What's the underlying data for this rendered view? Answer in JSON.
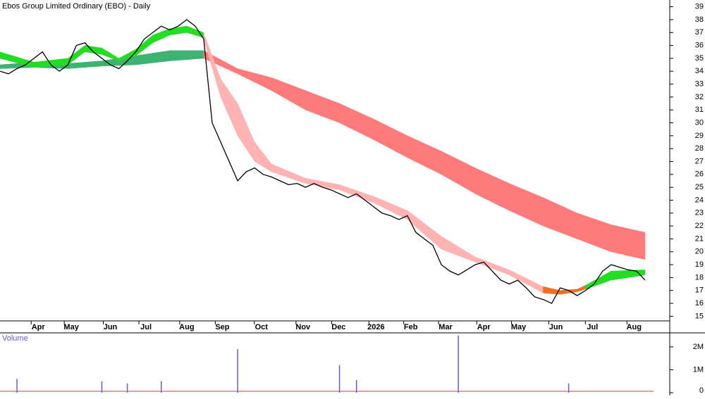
{
  "chart_data": {
    "type": "line",
    "title": "Ebos Group Limited Ordinary (EBO) - Daily",
    "xlim": [
      0,
      77
    ],
    "xticks": [
      {
        "value": 4.5,
        "label": "Apr"
      },
      {
        "value": 8.4,
        "label": "May"
      },
      {
        "value": 13,
        "label": "Jun"
      },
      {
        "value": 17.2,
        "label": "Jul"
      },
      {
        "value": 22,
        "label": "Aug"
      },
      {
        "value": 26.2,
        "label": "Sep"
      },
      {
        "value": 30.8,
        "label": "Oct"
      },
      {
        "value": 35.7,
        "label": "Nov"
      },
      {
        "value": 39.9,
        "label": "Dec"
      },
      {
        "value": 44.3,
        "label": "2026"
      },
      {
        "value": 48.4,
        "label": "Feb"
      },
      {
        "value": 52.5,
        "label": "Mar"
      },
      {
        "value": 57,
        "label": "Apr"
      },
      {
        "value": 61.1,
        "label": "May"
      },
      {
        "value": 65.5,
        "label": "Jun"
      },
      {
        "value": 69.8,
        "label": "Jul"
      },
      {
        "value": 74.7,
        "label": "Aug"
      }
    ],
    "ylim": [
      14.75,
      39.25
    ],
    "yticks": [
      15,
      16,
      17,
      18,
      19,
      20,
      21,
      22,
      23,
      24,
      25,
      26,
      27,
      28,
      29,
      30,
      31,
      32,
      33,
      34,
      35,
      36,
      37,
      38,
      39
    ],
    "price": {
      "color": "#000000",
      "x": [
        0,
        1,
        2,
        3,
        4,
        5,
        6,
        7,
        8,
        9,
        10,
        11,
        12,
        13,
        14,
        15,
        16,
        17,
        18,
        19,
        20,
        21,
        22,
        23,
        24,
        25,
        26,
        27,
        28,
        29,
        30,
        31,
        32,
        33,
        34,
        35,
        36,
        37,
        38,
        39,
        40,
        41,
        42,
        43,
        44,
        45,
        46,
        47,
        48,
        49,
        50,
        51,
        52,
        53,
        54,
        55,
        56,
        57,
        58,
        59,
        60,
        61,
        62,
        63,
        64,
        65,
        66,
        67,
        68,
        69,
        70,
        71,
        72,
        73,
        74,
        75,
        76
      ],
      "values": [
        34,
        33.8,
        34.2,
        34.5,
        35,
        35.5,
        34.5,
        34,
        34.5,
        36,
        36.2,
        35.5,
        35,
        34.5,
        34.2,
        34.8,
        35.5,
        36.5,
        37,
        37.5,
        37.2,
        37.5,
        38,
        37.5,
        36.5,
        30,
        28.5,
        27,
        25.5,
        26.2,
        26.5,
        26,
        25.8,
        25.5,
        25.2,
        25.3,
        25,
        25.3,
        25,
        24.8,
        24.5,
        24.2,
        24.5,
        24,
        23.5,
        23,
        22.8,
        22.5,
        22.8,
        21.5,
        21,
        20.5,
        19,
        18.5,
        18.2,
        18.6,
        19,
        19.2,
        18.5,
        17.8,
        17.5,
        17.8,
        17.2,
        16.5,
        16.3,
        16,
        17.2,
        17,
        16.6,
        17,
        17.5,
        18.5,
        19,
        18.8,
        18.6,
        18.5,
        17.8
      ]
    },
    "bands": [
      {
        "color": "#3cb371",
        "x": [
          0,
          4,
          8,
          12,
          16,
          20,
          24
        ],
        "lower": [
          34.2,
          34.3,
          34.2,
          34.4,
          34.5,
          34.8,
          35
        ],
        "upper": [
          34.5,
          34.7,
          34.6,
          34.8,
          35.2,
          35.6,
          35.6
        ]
      },
      {
        "color": "#ff7b7b",
        "x": [
          24,
          28,
          32,
          36,
          40,
          44,
          48,
          52,
          56,
          60,
          64,
          68,
          72,
          76
        ],
        "lower": [
          35,
          33.8,
          32.5,
          31,
          30,
          28.7,
          27.3,
          26,
          24.5,
          23.2,
          22,
          21,
          20,
          19.4
        ],
        "upper": [
          35.6,
          34.2,
          33.5,
          32.5,
          31.5,
          30.3,
          29,
          27.8,
          26.5,
          25.3,
          24.2,
          23,
          22.1,
          21.5
        ]
      },
      {
        "color": "#22dd22",
        "x": [
          0,
          4,
          8,
          10,
          12,
          14,
          16,
          18,
          20,
          22,
          24
        ],
        "lower": [
          35,
          34.3,
          34.5,
          35.5,
          35.3,
          34.8,
          35.2,
          36.2,
          36.8,
          37,
          36.6
        ],
        "upper": [
          35.5,
          34.7,
          35,
          36,
          35.8,
          35,
          35.7,
          36.8,
          37.3,
          37.5,
          37
        ]
      },
      {
        "color": "#ffb3b3",
        "x": [
          24,
          26,
          28,
          30,
          32,
          36,
          40,
          44,
          48,
          52,
          56,
          60,
          64
        ],
        "lower": [
          36.5,
          32,
          29,
          27,
          26.2,
          25.3,
          24.8,
          23.8,
          22.5,
          20.2,
          19.2,
          18.2,
          16.8
        ],
        "upper": [
          37,
          33.4,
          31.5,
          28.5,
          26.8,
          25.7,
          25.2,
          24.3,
          23.2,
          21.2,
          19.6,
          18.6,
          17.3
        ]
      },
      {
        "color": "#f07020",
        "x": [
          64,
          66,
          68,
          69
        ],
        "lower": [
          16.8,
          16.7,
          16.9,
          17.1
        ],
        "upper": [
          17.3,
          17,
          17.1,
          17.4
        ]
      },
      {
        "color": "#22dd22",
        "x": [
          69,
          72,
          76
        ],
        "lower": [
          17.1,
          17.8,
          18.2
        ],
        "upper": [
          17.4,
          18.5,
          18.6
        ]
      }
    ],
    "volume": {
      "title": "Volume",
      "color": "#6a5acd",
      "ylim": [
        0,
        2550000
      ],
      "yticks": [
        {
          "value": 0,
          "label": "0"
        },
        {
          "value": 1000000,
          "label": "1M"
        },
        {
          "value": 2000000,
          "label": "2M"
        }
      ],
      "x": [
        2,
        12,
        15,
        19,
        28,
        40,
        42,
        54,
        67
      ],
      "values": [
        600000,
        500000,
        400000,
        500000,
        1900000,
        1200000,
        550000,
        2500000,
        400000
      ]
    }
  }
}
